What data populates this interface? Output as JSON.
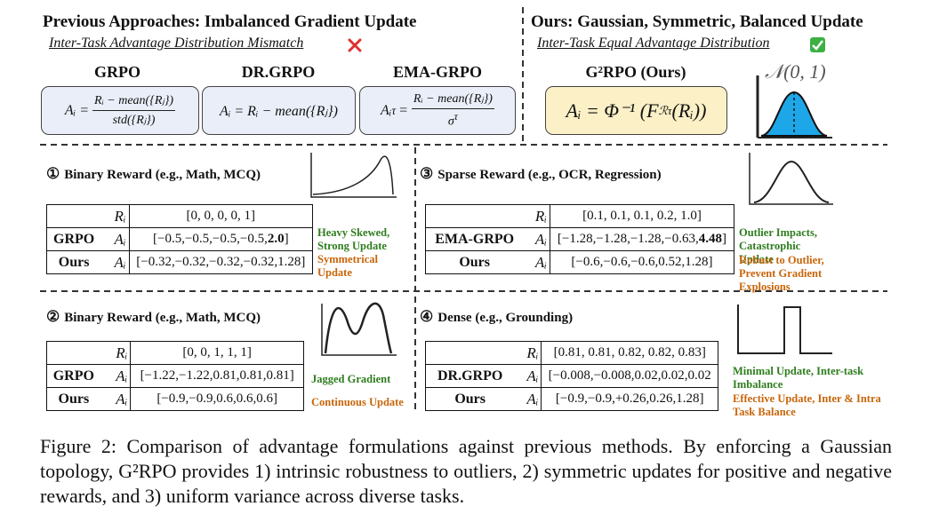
{
  "previous": {
    "title": "Previous Approaches: Imbalanced Gradient Update",
    "subtitle": "Inter-Task Advantage Distribution Mismatch",
    "methods": [
      {
        "name": "GRPO",
        "lhs": "Aᵢ =",
        "numerator": "Rᵢ − mean({Rⱼ})",
        "denominator": "std({Rⱼ})"
      },
      {
        "name": "DR.GRPO",
        "formula": "Aᵢ = Rᵢ − mean({Rⱼ})"
      },
      {
        "name": "EMA-GRPO",
        "lhs": "Aᵢ",
        "lhs_sup": "τ",
        "eq": "=",
        "numerator": "Rᵢ − mean({Rⱼ})",
        "denominator": "σ",
        "denominator_sup": "τ"
      }
    ]
  },
  "ours": {
    "title": "Ours: Gaussian, Symmetric, Balanced Update",
    "subtitle": "Inter-Task Equal Advantage Distribution",
    "method": "G²RPO (Ours)",
    "formula_start": "Aᵢ = Φ⁻¹ (F",
    "formula_sub": "ℛτ",
    "formula_end": "(Rᵢ))",
    "distribution": "𝒩(0, 1)"
  },
  "panels": [
    {
      "marker": "①",
      "title": "Binary Reward (e.g., Math,  MCQ)",
      "rows": [
        {
          "symbol": "Rᵢ",
          "value": "[0, 0, 0, 0, 1]"
        },
        {
          "method": "GRPO",
          "symbol": "Aᵢ",
          "value": "[−0.5,−0.5,−0.5,−0.5,",
          "bold": "2.0",
          "close": "]"
        },
        {
          "method": "Ours",
          "symbol": "Aᵢ",
          "value": "[−0.32,−0.32,−0.32,−0.32,1.28]"
        }
      ],
      "notes": [
        {
          "text": "Heavy Skewed, Strong Update",
          "kind": "previous"
        },
        {
          "text": "Symmetrical Update",
          "kind": "ours"
        }
      ]
    },
    {
      "marker": "②",
      "title": "Binary Reward (e.g., Math,  MCQ)",
      "rows": [
        {
          "symbol": "Rᵢ",
          "value": "[0, 0, 1, 1, 1]"
        },
        {
          "method": "GRPO",
          "symbol": "Aᵢ",
          "value": "[−1.22,−1.22,0.81,0.81,0.81]"
        },
        {
          "method": "Ours",
          "symbol": "Aᵢ",
          "value": "[−0.9,−0.9,0.6,0.6,0.6]"
        }
      ],
      "notes": [
        {
          "text": "Jagged Gradient",
          "kind": "previous"
        },
        {
          "text": "Continuous  Update",
          "kind": "ours"
        }
      ]
    },
    {
      "marker": "③",
      "title": "Sparse Reward (e.g., OCR, Regression)",
      "rows": [
        {
          "symbol": "Rᵢ",
          "value": "[0.1, 0.1, 0.1, 0.2, 1.0]"
        },
        {
          "method": "EMA-GRPO",
          "symbol": "Aᵢ",
          "value": "[−1.28,−1.28,−1.28,−0.63,",
          "bold": "4.48",
          "close": "]"
        },
        {
          "method": "Ours",
          "symbol": "Aᵢ",
          "value": "[−0.6,−0.6,−0.6,0.52,1.28]"
        }
      ],
      "notes": [
        {
          "text": "Outlier Impacts, Catastrophic Update",
          "kind": "previous"
        },
        {
          "text": "Robust to Outlier, Prevent Gradient Explosions",
          "kind": "ours"
        }
      ]
    },
    {
      "marker": "④",
      "title": "Dense  (e.g., Grounding)",
      "rows": [
        {
          "symbol": "Rᵢ",
          "value": "[0.81, 0.81, 0.82, 0.82, 0.83]"
        },
        {
          "method": "DR.GRPO",
          "symbol": "Aᵢ",
          "value": "[−0.008,−0.008,0.02,0.02,0.02"
        },
        {
          "method": "Ours",
          "symbol": "Aᵢ",
          "value": "[−0.9,−0.9,+0.26,0.26,1.28]"
        }
      ],
      "notes": [
        {
          "text": "Minimal Update, Inter-task Imbalance",
          "kind": "previous"
        },
        {
          "text": "Effective Update, Inter & Intra Task Balance",
          "kind": "ours"
        }
      ]
    }
  ],
  "caption": "Figure 2: Comparison of advantage formulations against previous methods. By enforcing a Gaussian topology, G²RPO provides 1) intrinsic robustness to outliers, 2) symmetric updates for positive and negative rewards, and 3) uniform variance across diverse tasks."
}
